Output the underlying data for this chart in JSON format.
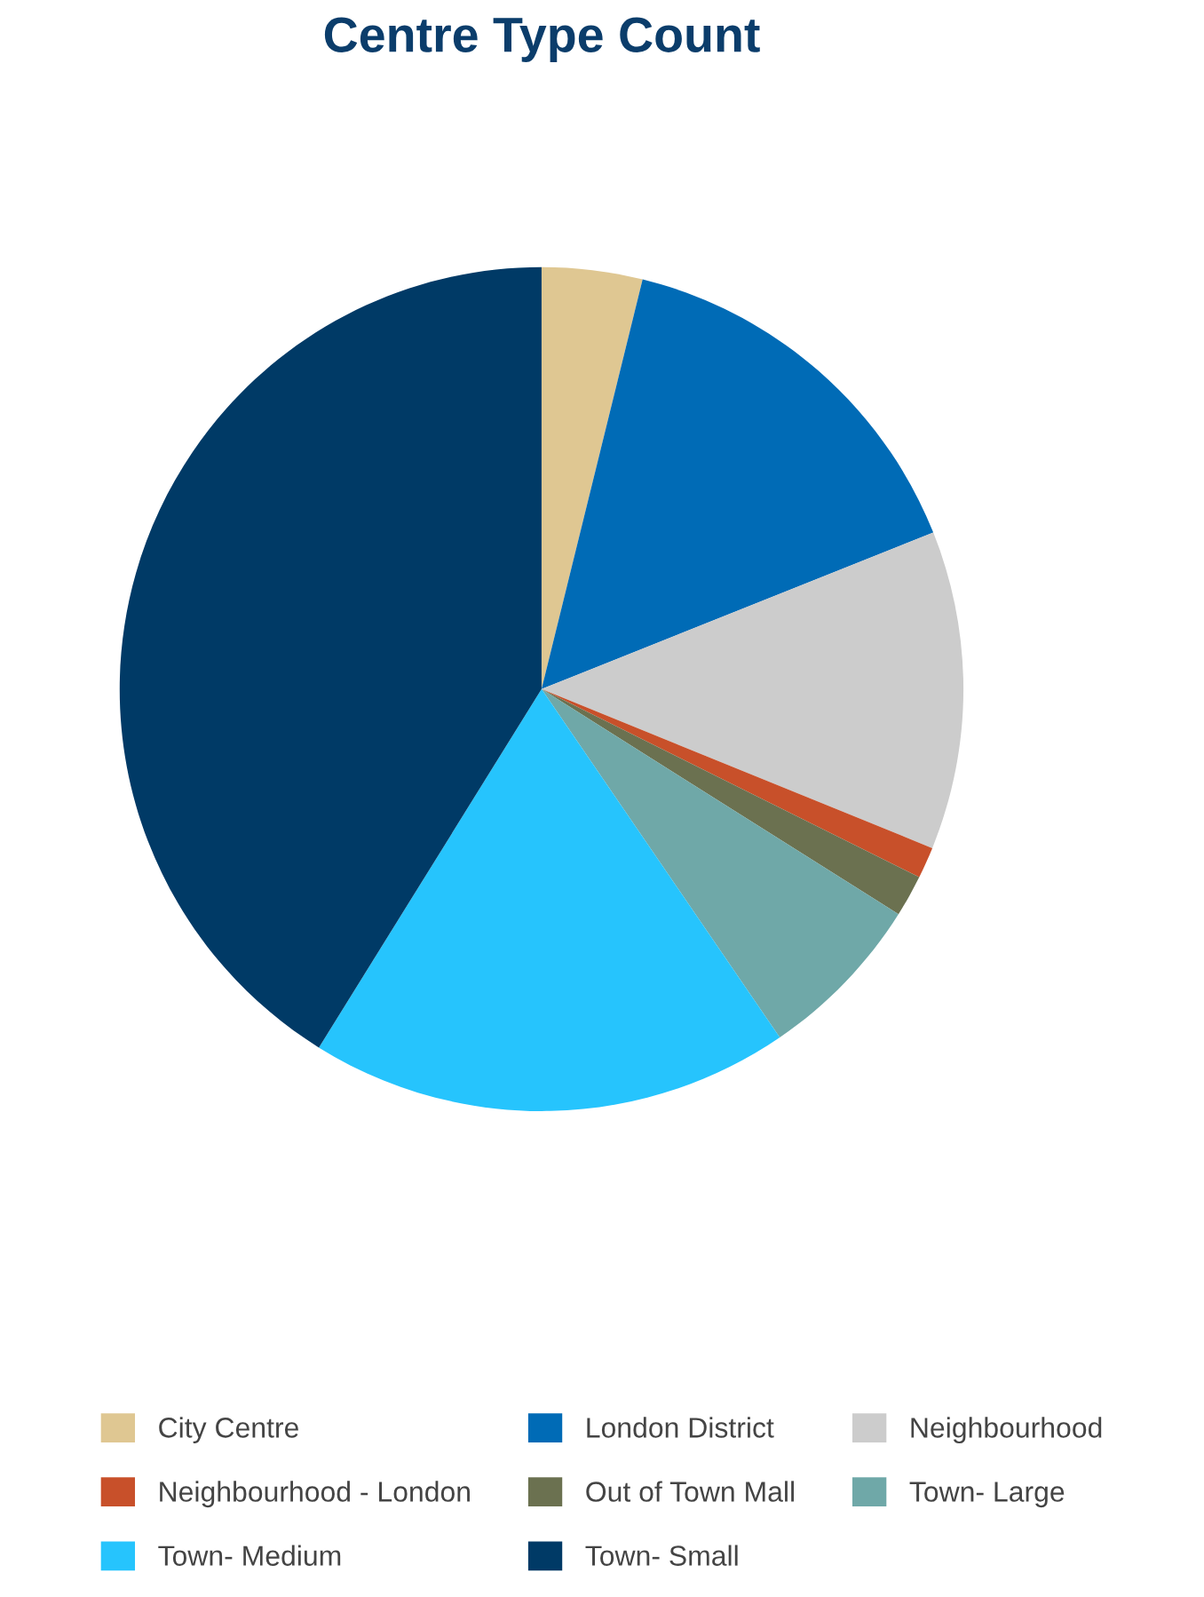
{
  "chart_data": {
    "type": "pie",
    "title": "Centre Type Count",
    "categories": [
      "City Centre",
      "London District",
      "Neighbourhood",
      "Neighbourhood - London",
      "Out of Town Mall",
      "Town- Large",
      "Town- Medium",
      "Town- Small"
    ],
    "values": [
      3.85,
      15.1,
      12.2,
      1.2,
      1.6,
      6.5,
      18.4,
      41.15
    ],
    "colors": [
      "#dfc792",
      "#006bb6",
      "#cccccc",
      "#c8502a",
      "#6b7150",
      "#6fa8a8",
      "#26c4fd",
      "#003a66"
    ],
    "legend": "bottom"
  }
}
